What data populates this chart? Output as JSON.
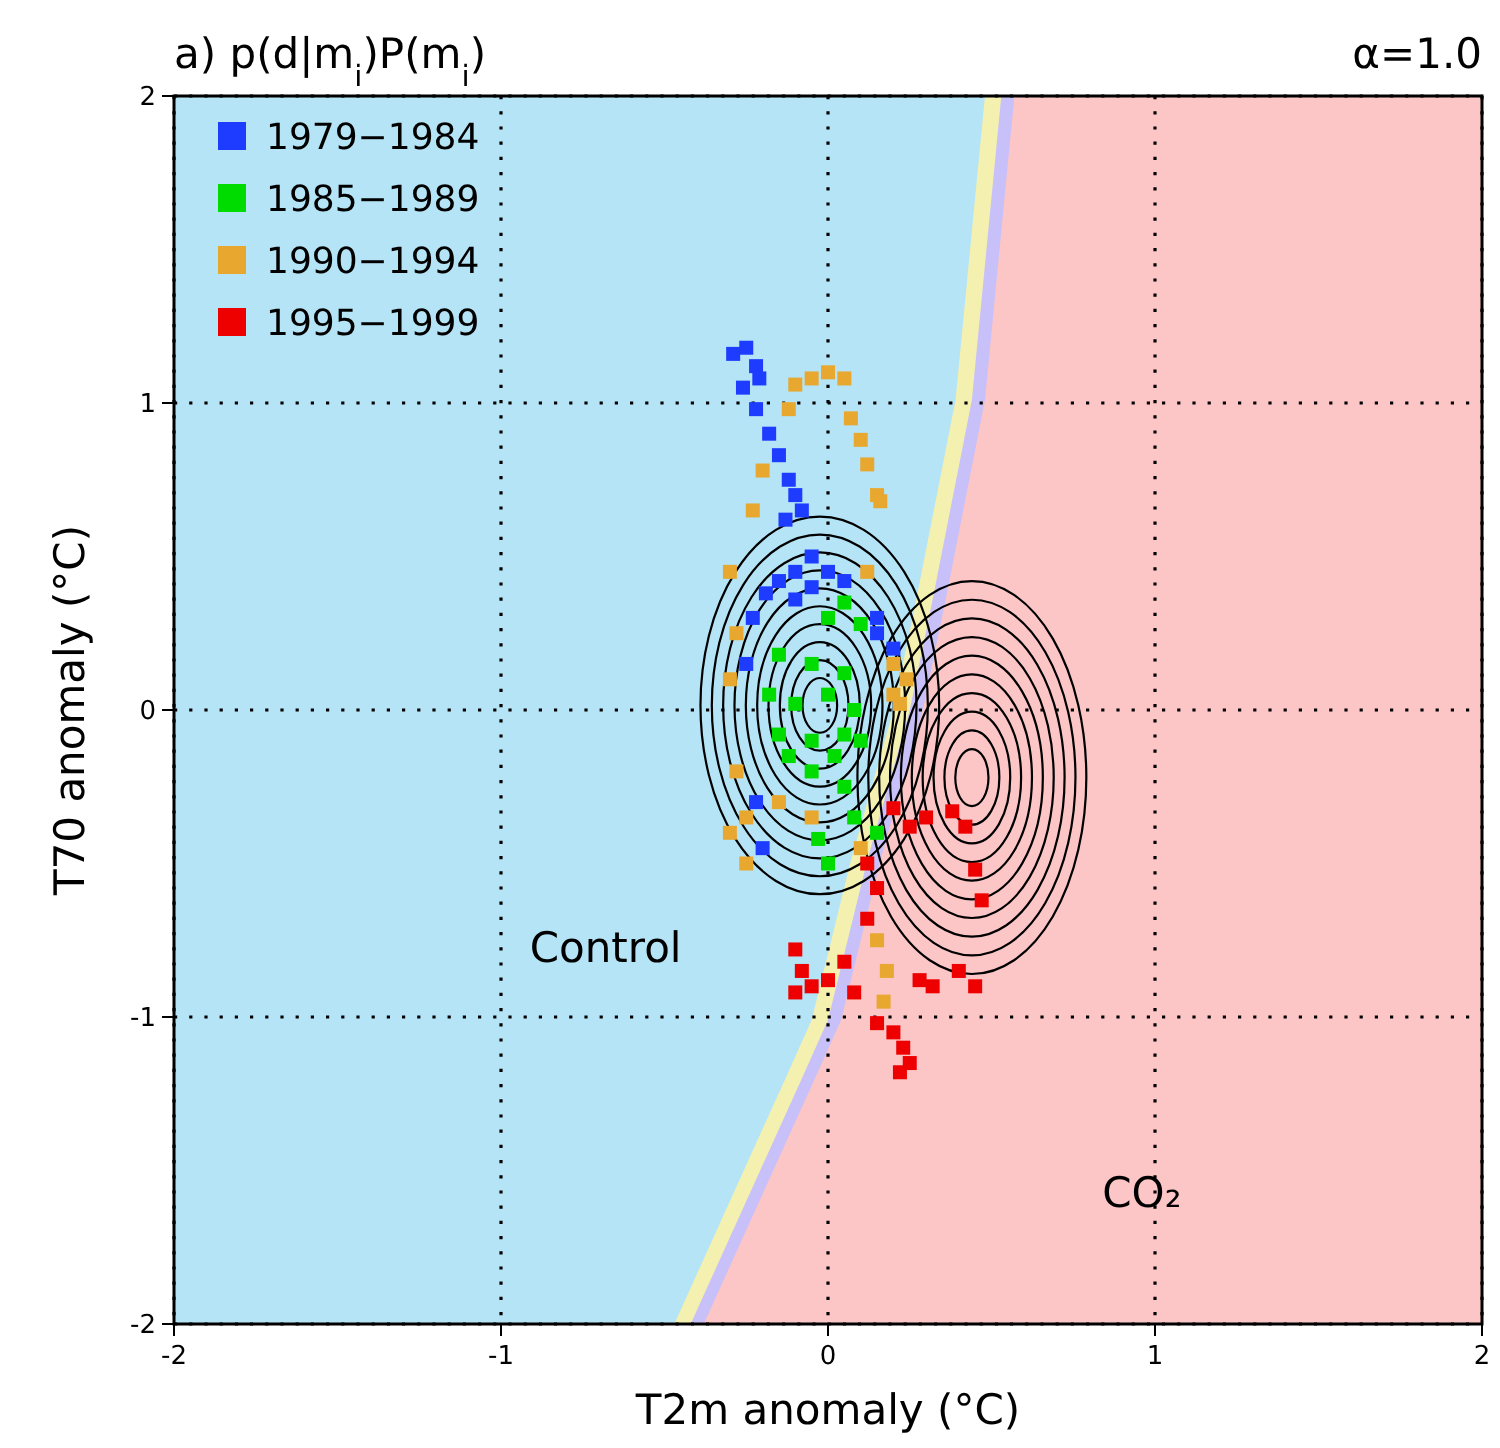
{
  "chart_data": {
    "type": "scatter",
    "title": "a)  p(d|m$_{i}$)P(m$_{i}$)",
    "xlabel": "T2m anomaly (°C)",
    "ylabel": "T70 anomaly (°C)",
    "xlim": [
      -2,
      2
    ],
    "ylim": [
      -2,
      2
    ],
    "xticks": [
      -2,
      -1,
      0,
      1,
      2
    ],
    "yticks": [
      -2,
      -1,
      0,
      1,
      2
    ],
    "grid": true,
    "legend": "top left",
    "annotations": [
      "α=1.0",
      "Control",
      "CO₂"
    ],
    "series": [
      {
        "type": "area",
        "color": "#f4f0b0",
        "x": [
          -0.47,
          -0.13,
          -0.05,
          0.07,
          0.2,
          0.27,
          0.39,
          0.48,
          2,
          2
        ],
        "values": [
          -2,
          -1.2,
          -1.01,
          -0.49,
          0,
          0.36,
          1.01,
          2,
          2,
          -2
        ]
      },
      {
        "type": "area",
        "color": "#c8c0f8",
        "x": [
          -0.42,
          -0.08,
          0,
          0.12,
          0.25,
          0.32,
          0.44,
          0.53,
          2,
          2
        ],
        "values": [
          -2,
          -1.2,
          -1.01,
          -0.49,
          0,
          0.36,
          1.01,
          2,
          2,
          -2
        ]
      },
      {
        "type": "area",
        "color": "#fcc5c6",
        "x": [
          -0.38,
          -0.04,
          0.04,
          0.16,
          0.29,
          0.36,
          0.48,
          0.57,
          2,
          2
        ],
        "values": [
          -2,
          -1.2,
          -1.01,
          -0.49,
          0,
          0.36,
          1.01,
          2,
          2,
          -2
        ]
      },
      {
        "name": "1979−1984",
        "marker": "square",
        "color": "#1e3cff",
        "x": [
          -0.29,
          -0.25,
          -0.22,
          -0.26,
          -0.21,
          -0.22,
          -0.18,
          -0.15,
          -0.12,
          -0.1,
          -0.08,
          -0.13,
          -0.05,
          -0.1,
          -0.15,
          -0.05,
          0,
          0.05,
          -0.19,
          -0.23,
          -0.1,
          0.15,
          0.15,
          0.2,
          -0.25,
          -0.22,
          -0.2
        ],
        "values": [
          1.16,
          1.18,
          1.12,
          1.05,
          1.08,
          0.98,
          0.9,
          0.83,
          0.75,
          0.7,
          0.65,
          0.62,
          0.5,
          0.45,
          0.42,
          0.4,
          0.45,
          0.42,
          0.38,
          0.3,
          0.36,
          0.3,
          0.25,
          0.2,
          0.15,
          -0.3,
          -0.45
        ]
      },
      {
        "name": "1985−1989",
        "marker": "square",
        "color": "#00dc00",
        "x": [
          0.05,
          0,
          0.1,
          -0.15,
          -0.05,
          0.05,
          -0.18,
          -0.1,
          0,
          0.08,
          -0.15,
          -0.05,
          0.05,
          -0.12,
          -0.05,
          0.02,
          0.1,
          0.05,
          0.08,
          0.15,
          0,
          -0.03
        ],
        "values": [
          0.35,
          0.3,
          0.28,
          0.18,
          0.15,
          0.12,
          0.05,
          0.02,
          0.05,
          0,
          -0.08,
          -0.1,
          -0.08,
          -0.15,
          -0.2,
          -0.15,
          -0.1,
          -0.25,
          -0.35,
          -0.4,
          -0.5,
          -0.42
        ]
      },
      {
        "name": "1990−1994",
        "marker": "square",
        "color": "#e8a830",
        "x": [
          -0.1,
          -0.05,
          0,
          0.05,
          -0.12,
          0.07,
          0.1,
          0.12,
          -0.2,
          -0.23,
          0.15,
          0.16,
          -0.3,
          0.12,
          -0.28,
          0.2,
          -0.3,
          0.2,
          0.24,
          0.22,
          -0.28,
          -0.25,
          -0.3,
          -0.25,
          -0.15,
          -0.05,
          0.1,
          0.15,
          0.18,
          0.17
        ],
        "values": [
          1.06,
          1.08,
          1.1,
          1.08,
          0.98,
          0.95,
          0.88,
          0.8,
          0.78,
          0.65,
          0.7,
          0.68,
          0.45,
          0.45,
          0.25,
          0.15,
          0.1,
          0.05,
          0.1,
          0.02,
          -0.2,
          -0.35,
          -0.4,
          -0.5,
          -0.3,
          -0.35,
          -0.45,
          -0.75,
          -0.85,
          -0.95
        ]
      },
      {
        "name": "1995−1999",
        "marker": "square",
        "color": "#ee0000",
        "x": [
          0.2,
          0.25,
          0.3,
          0.38,
          0.42,
          0.45,
          0.47,
          0.12,
          0.15,
          0.12,
          -0.1,
          -0.08,
          -0.05,
          0,
          0.05,
          0.08,
          -0.1,
          0.28,
          0.32,
          0.4,
          0.45,
          0.15,
          0.2,
          0.23,
          0.25,
          0.22
        ],
        "values": [
          -0.32,
          -0.38,
          -0.35,
          -0.33,
          -0.38,
          -0.52,
          -0.62,
          -0.5,
          -0.58,
          -0.68,
          -0.78,
          -0.85,
          -0.9,
          -0.88,
          -0.82,
          -0.92,
          -0.92,
          -0.88,
          -0.9,
          -0.85,
          -0.9,
          -1.02,
          -1.05,
          -1.1,
          -1.15,
          -1.18
        ]
      }
    ]
  }
}
